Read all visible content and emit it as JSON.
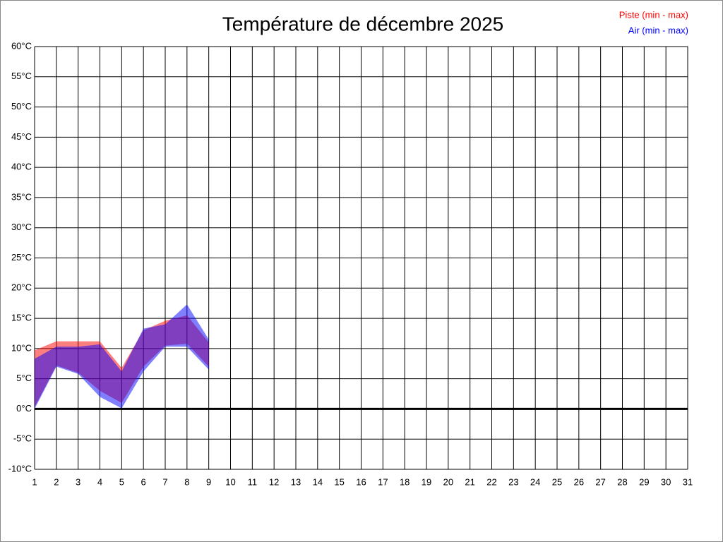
{
  "chart_data": {
    "type": "range-area",
    "title": "Température de décembre 2025",
    "x": [
      1,
      2,
      3,
      4,
      5,
      6,
      7,
      8,
      9
    ],
    "series": [
      {
        "name": "Piste (min - max)",
        "color": "#ff0000",
        "fill": "#ff0000",
        "low": [
          0.3,
          7.2,
          6,
          3,
          1,
          7,
          10.5,
          10.8,
          7
        ],
        "high": [
          9.7,
          11.2,
          11.2,
          11.2,
          6.8,
          13,
          14.6,
          15.5,
          11
        ]
      },
      {
        "name": "Air (min - max)",
        "color": "#0000ff",
        "fill": "#0000ff",
        "low": [
          0,
          7,
          5.8,
          2,
          0.1,
          6.2,
          10.3,
          10.3,
          6.5
        ],
        "high": [
          8.3,
          10.3,
          10.3,
          10.7,
          6.2,
          13.3,
          14,
          17.3,
          11.5
        ]
      }
    ],
    "xlim": [
      1,
      31
    ],
    "xticks": [
      1,
      2,
      3,
      4,
      5,
      6,
      7,
      8,
      9,
      10,
      11,
      12,
      13,
      14,
      15,
      16,
      17,
      18,
      19,
      20,
      21,
      22,
      23,
      24,
      25,
      26,
      27,
      28,
      29,
      30,
      31
    ],
    "ylim": [
      -10,
      60
    ],
    "yticks": [
      {
        "value": -10,
        "label": "-10°C"
      },
      {
        "value": -5,
        "label": "-5°C"
      },
      {
        "value": 0,
        "label": "0°C"
      },
      {
        "value": 5,
        "label": "5°C"
      },
      {
        "value": 10,
        "label": "10°C"
      },
      {
        "value": 15,
        "label": "15°C"
      },
      {
        "value": 20,
        "label": "20°C"
      },
      {
        "value": 25,
        "label": "25°C"
      },
      {
        "value": 30,
        "label": "30°C"
      },
      {
        "value": 35,
        "label": "35°C"
      },
      {
        "value": 40,
        "label": "40°C"
      },
      {
        "value": 45,
        "label": "45°C"
      },
      {
        "value": 50,
        "label": "50°C"
      },
      {
        "value": 55,
        "label": "55°C"
      },
      {
        "value": 60,
        "label": "60°C"
      }
    ],
    "grid": true,
    "fill_opacity": 0.5,
    "legend": "top-right"
  }
}
